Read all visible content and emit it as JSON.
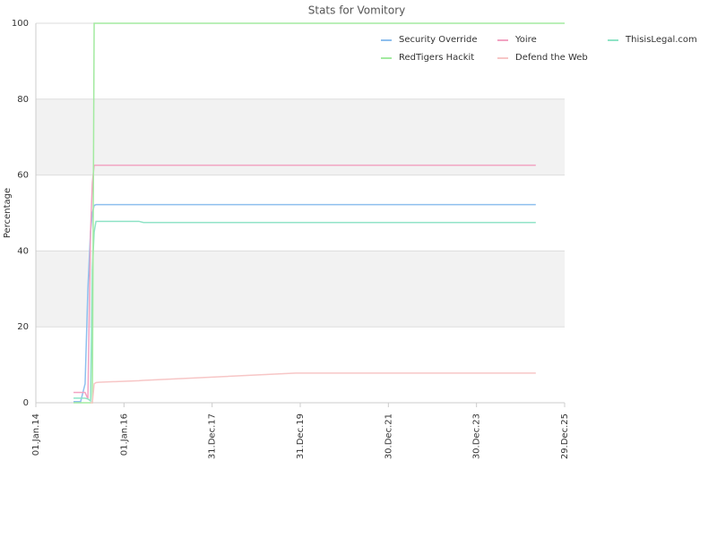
{
  "chart_data": {
    "type": "line",
    "title": "Stats for Vomitory",
    "y_label": "Percentage",
    "x": [
      "2014-11-09",
      "2015-01-07",
      "2015-02-13",
      "2015-03-08",
      "2015-03-30",
      "2015-04-14",
      "2015-04-29",
      "2015-05-14",
      "2015-06-05",
      "2016-05-04",
      "2016-06-10",
      "2019-11-22",
      "2025-05-04",
      "2025-12-29"
    ],
    "series": [
      {
        "name": "Security Override",
        "color": "#8ebfee",
        "values": [
          0.3,
          0.3,
          5,
          30,
          45,
          50,
          52,
          52.2,
          52.2,
          52.2,
          52.2,
          52.2,
          52.2,
          null
        ]
      },
      {
        "name": "Yoire",
        "color": "#f2a3c2",
        "values": [
          2.7,
          2.7,
          2.7,
          1,
          45,
          58,
          62.6,
          62.6,
          62.6,
          62.6,
          62.6,
          62.6,
          62.6,
          null
        ]
      },
      {
        "name": "ThisisLegal.com",
        "color": "#8fe3c6",
        "values": [
          1.2,
          1.2,
          1.2,
          1,
          0.5,
          35,
          45,
          47.8,
          47.8,
          47.8,
          47.5,
          47.5,
          47.5,
          null
        ]
      },
      {
        "name": "RedTigers Hackit",
        "color": "#a3eaa0",
        "values": [
          0,
          0,
          0,
          0,
          0,
          0,
          100,
          100,
          100,
          100,
          100,
          100,
          100,
          100
        ]
      },
      {
        "name": "Defend the Web",
        "color": "#f7c6c6",
        "values": [
          null,
          null,
          null,
          null,
          0,
          0,
          5,
          5.3,
          5.4,
          5.8,
          5.9,
          7.8,
          7.8,
          null
        ]
      }
    ],
    "xlim": [
      "2014-01-01",
      "2025-12-29"
    ],
    "xticks": [
      {
        "value": "2014-01-01",
        "label": "01.Jan.14"
      },
      {
        "value": "2016-01-01",
        "label": "01.Jan.16"
      },
      {
        "value": "2017-12-31",
        "label": "31.Dec.17"
      },
      {
        "value": "2019-12-31",
        "label": "31.Dec.19"
      },
      {
        "value": "2021-12-30",
        "label": "30.Dec.21"
      },
      {
        "value": "2023-12-30",
        "label": "30.Dec.23"
      },
      {
        "value": "2025-12-29",
        "label": "29.Dec.25"
      }
    ],
    "ylim": [
      0,
      100
    ],
    "yticks": [
      0,
      20,
      40,
      60,
      80,
      100
    ],
    "grid": true
  }
}
